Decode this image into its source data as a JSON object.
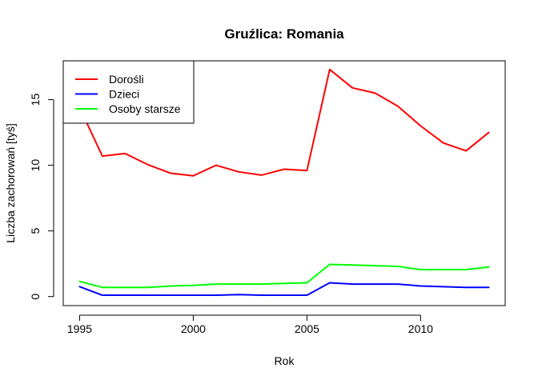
{
  "chart_data": {
    "type": "line",
    "title": "Gruźlica: Romania",
    "xlabel": "Rok",
    "ylabel": "Liczba zachorowań [tyś]",
    "x": [
      1995,
      1996,
      1997,
      1998,
      1999,
      2000,
      2001,
      2002,
      2003,
      2004,
      2005,
      2006,
      2007,
      2008,
      2009,
      2010,
      2011,
      2012,
      2013
    ],
    "xlim": [
      1994.28,
      2013.72
    ],
    "ylim": [
      -0.69,
      17.96
    ],
    "xticks": [
      "1995",
      "2000",
      "2005",
      "2010"
    ],
    "yticks": [
      "0",
      "5",
      "10",
      "15"
    ],
    "grid": false,
    "legend_position": "top-left",
    "series": [
      {
        "name": "Dorośli",
        "color": "#ff0000",
        "values": [
          14.4,
          10.7,
          10.9,
          10.05,
          9.4,
          9.2,
          10.0,
          9.5,
          9.25,
          9.7,
          9.6,
          17.3,
          15.9,
          15.5,
          14.5,
          13.0,
          11.7,
          11.1,
          12.5
        ]
      },
      {
        "name": "Dzieci",
        "color": "#0000ff",
        "values": [
          0.75,
          0.1,
          0.1,
          0.1,
          0.1,
          0.1,
          0.1,
          0.15,
          0.1,
          0.1,
          0.1,
          1.05,
          0.95,
          0.95,
          0.95,
          0.8,
          0.75,
          0.7,
          0.7
        ]
      },
      {
        "name": "Osoby starsze",
        "color": "#00ff00",
        "values": [
          1.15,
          0.7,
          0.7,
          0.7,
          0.8,
          0.85,
          0.95,
          0.95,
          0.95,
          1.0,
          1.05,
          2.45,
          2.4,
          2.35,
          2.3,
          2.05,
          2.05,
          2.05,
          2.25
        ]
      }
    ]
  }
}
